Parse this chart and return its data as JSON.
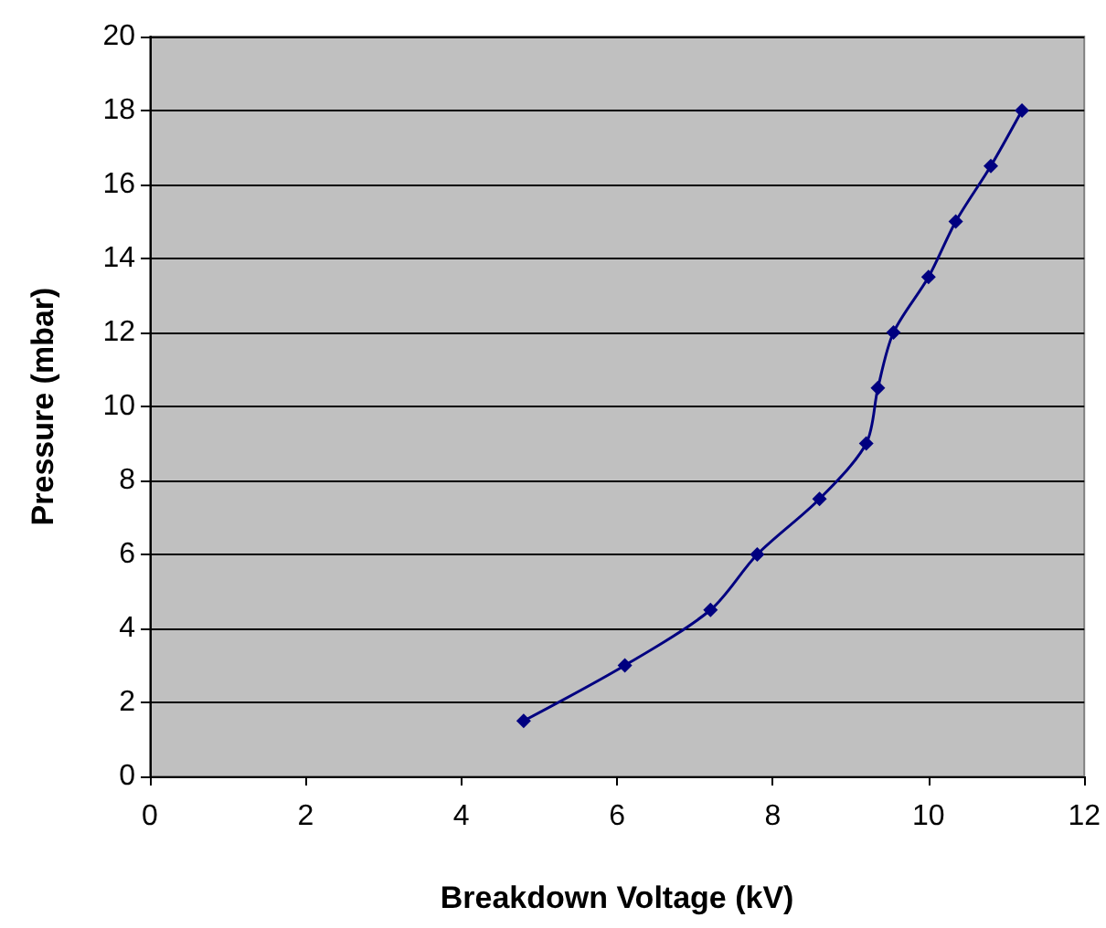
{
  "chart_data": {
    "type": "line",
    "xlabel": "Breakdown Voltage (kV)",
    "ylabel": "Pressure (mbar)",
    "x": [
      4.8,
      6.1,
      7.2,
      7.8,
      8.6,
      9.2,
      9.35,
      9.55,
      10,
      10.35,
      10.8,
      11.2
    ],
    "series": [
      {
        "color": "#000080",
        "values": [
          1.5,
          3,
          4.5,
          6,
          7.5,
          9,
          10.5,
          12,
          13.5,
          15,
          16.5,
          18
        ]
      }
    ],
    "xlim": [
      0,
      12
    ],
    "xticks": [
      0,
      2,
      4,
      6,
      8,
      10,
      12
    ],
    "ylim": [
      0,
      20
    ],
    "yticks": [
      0,
      2,
      4,
      6,
      8,
      10,
      12,
      14,
      16,
      18,
      20
    ],
    "grid": "y",
    "marker": "diamond",
    "line_style": "solid"
  }
}
